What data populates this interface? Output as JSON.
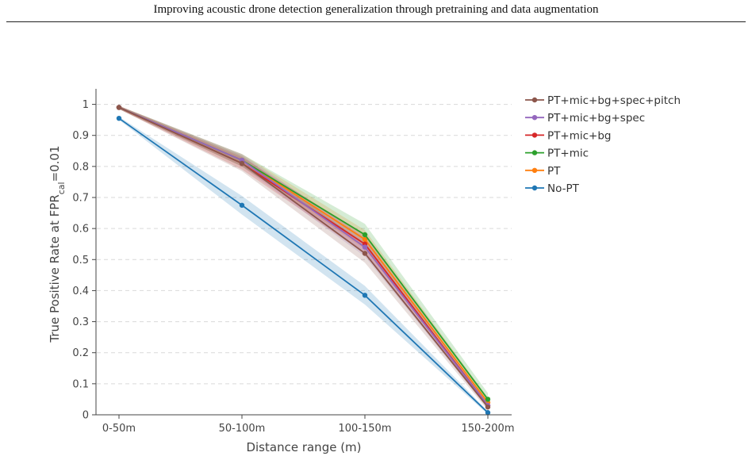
{
  "header": {
    "title": "Improving acoustic drone detection generalization through pretraining and data augmentation"
  },
  "chart_data": {
    "type": "line",
    "xlabel": "Distance range (m)",
    "ylabel_main": "True Positive Rate at FPR",
    "ylabel_sub": "cal",
    "ylabel_suffix": "=0.01",
    "categories": [
      "0-50m",
      "50-100m",
      "100-150m",
      "150-200m"
    ],
    "ylim": [
      0,
      1.05
    ],
    "yticks": [
      0,
      0.1,
      0.2,
      0.3,
      0.4,
      0.5,
      0.6,
      0.7,
      0.8,
      0.9,
      1
    ],
    "ytick_labels": [
      "0",
      "0.1",
      "0.2",
      "0.3",
      "0.4",
      "0.5",
      "0.6",
      "0.7",
      "0.8",
      "0.9",
      "1"
    ],
    "grid": true,
    "legend_position": "top-right",
    "series": [
      {
        "name": "PT+mic+bg+spec+pitch",
        "color": "#8c564b",
        "values": [
          0.99,
          0.81,
          0.52,
          0.025
        ],
        "lower": [
          0.985,
          0.785,
          0.49,
          0.015
        ],
        "upper": [
          0.995,
          0.835,
          0.55,
          0.035
        ]
      },
      {
        "name": "PT+mic+bg+spec",
        "color": "#9467bd",
        "values": [
          0.99,
          0.82,
          0.54,
          0.03
        ],
        "lower": [
          0.985,
          0.8,
          0.51,
          0.02
        ],
        "upper": [
          0.995,
          0.84,
          0.57,
          0.04
        ]
      },
      {
        "name": "PT+mic+bg",
        "color": "#d62728",
        "values": [
          0.99,
          0.81,
          0.55,
          0.03
        ],
        "lower": [
          0.985,
          0.79,
          0.52,
          0.02
        ],
        "upper": [
          0.995,
          0.83,
          0.58,
          0.04
        ]
      },
      {
        "name": "PT+mic",
        "color": "#2ca02c",
        "values": [
          0.99,
          0.82,
          0.58,
          0.05
        ],
        "lower": [
          0.985,
          0.8,
          0.55,
          0.03
        ],
        "upper": [
          0.995,
          0.84,
          0.615,
          0.07
        ]
      },
      {
        "name": "PT",
        "color": "#ff7f0e",
        "values": [
          0.99,
          0.82,
          0.565,
          0.04
        ],
        "lower": [
          0.985,
          0.8,
          0.535,
          0.025
        ],
        "upper": [
          0.995,
          0.84,
          0.595,
          0.055
        ]
      },
      {
        "name": "No-PT",
        "color": "#1f77b4",
        "values": [
          0.955,
          0.675,
          0.385,
          0.007
        ],
        "lower": [
          0.95,
          0.645,
          0.355,
          0.002
        ],
        "upper": [
          0.96,
          0.705,
          0.415,
          0.012
        ]
      }
    ]
  }
}
